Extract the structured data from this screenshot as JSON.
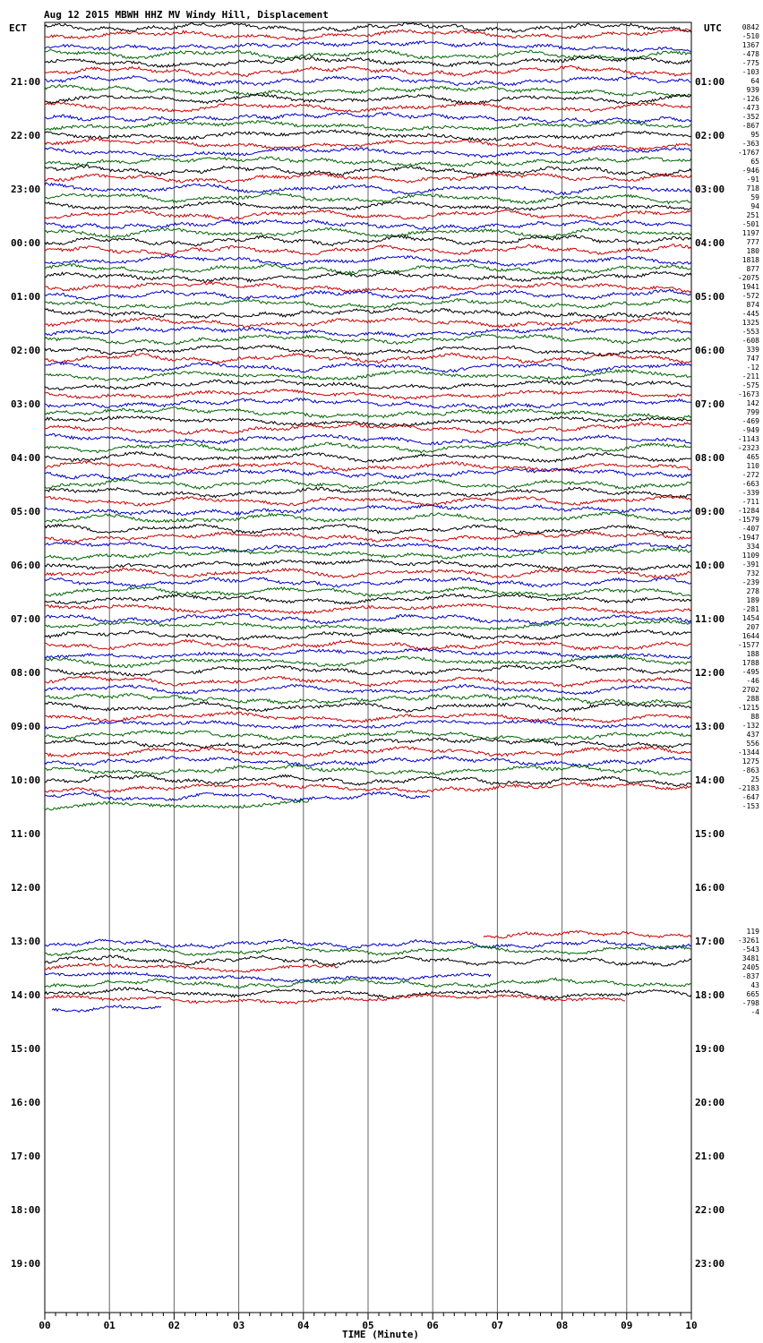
{
  "chart_data": {
    "type": "line",
    "title": "Aug 12 2015 MBWH HHZ MV Windy Hill, Displacement",
    "left_axis_label": "ECT",
    "right_axis_label": "UTC",
    "xlabel": "TIME (Minute)",
    "x_ticks": [
      "00",
      "01",
      "02",
      "03",
      "04",
      "05",
      "06",
      "07",
      "08",
      "09",
      "10"
    ],
    "left_time_labels": [
      "21:00",
      "22:00",
      "23:00",
      "00:00",
      "01:00",
      "02:00",
      "03:00",
      "04:00",
      "05:00",
      "06:00",
      "07:00",
      "08:00",
      "09:00",
      "10:00",
      "11:00",
      "12:00",
      "13:00",
      "14:00",
      "15:00",
      "16:00",
      "17:00",
      "18:00",
      "19:00"
    ],
    "right_time_labels": [
      "01:00",
      "02:00",
      "03:00",
      "04:00",
      "05:00",
      "06:00",
      "07:00",
      "08:00",
      "09:00",
      "10:00",
      "11:00",
      "12:00",
      "13:00",
      "14:00",
      "15:00",
      "16:00",
      "17:00",
      "18:00",
      "19:00",
      "20:00",
      "21:00",
      "22:00",
      "23:00"
    ],
    "trace_colors": [
      "#000000",
      "#cc0000",
      "#0000cc",
      "#006600"
    ],
    "grid": "vertical lines at each minute",
    "trace_offsets_block1": [
      "0842",
      "-510",
      "1367",
      "-478",
      "-775",
      "-103",
      "64",
      "939",
      "-126",
      "-473",
      "-352",
      "-867",
      "95",
      "-363",
      "-1767",
      "65",
      "-946",
      "-91",
      "718",
      "59",
      "94",
      "251",
      "-501",
      "1197",
      "777",
      "180",
      "1818",
      "877",
      "-2075",
      "1941",
      "-572",
      "874",
      "-445",
      "1325",
      "-553",
      "-608",
      "339",
      "747",
      "-12",
      "-211",
      "-575",
      "-1673",
      "142",
      "799",
      "-469",
      "-949",
      "-1143",
      "-2323",
      "465",
      "110",
      "-272",
      "-663",
      "-339",
      "-711",
      "-1284",
      "-1579",
      "-407",
      "-1947",
      "334",
      "1109",
      "-391",
      "732",
      "-239",
      "278",
      "189",
      "-281",
      "1454",
      "207",
      "1644",
      "-1577",
      "188",
      "1788",
      "-495",
      "-46",
      "2702",
      "288",
      "-1215",
      "88",
      "-132",
      "437",
      "556",
      "-1344",
      "1275",
      "-863",
      "25",
      "-2183",
      "-647",
      "-153"
    ],
    "trace_offsets_block2": [
      "119",
      "-3261",
      "-543",
      "3481",
      "2405",
      "-837",
      "43",
      "665",
      "-798",
      "-4"
    ]
  }
}
